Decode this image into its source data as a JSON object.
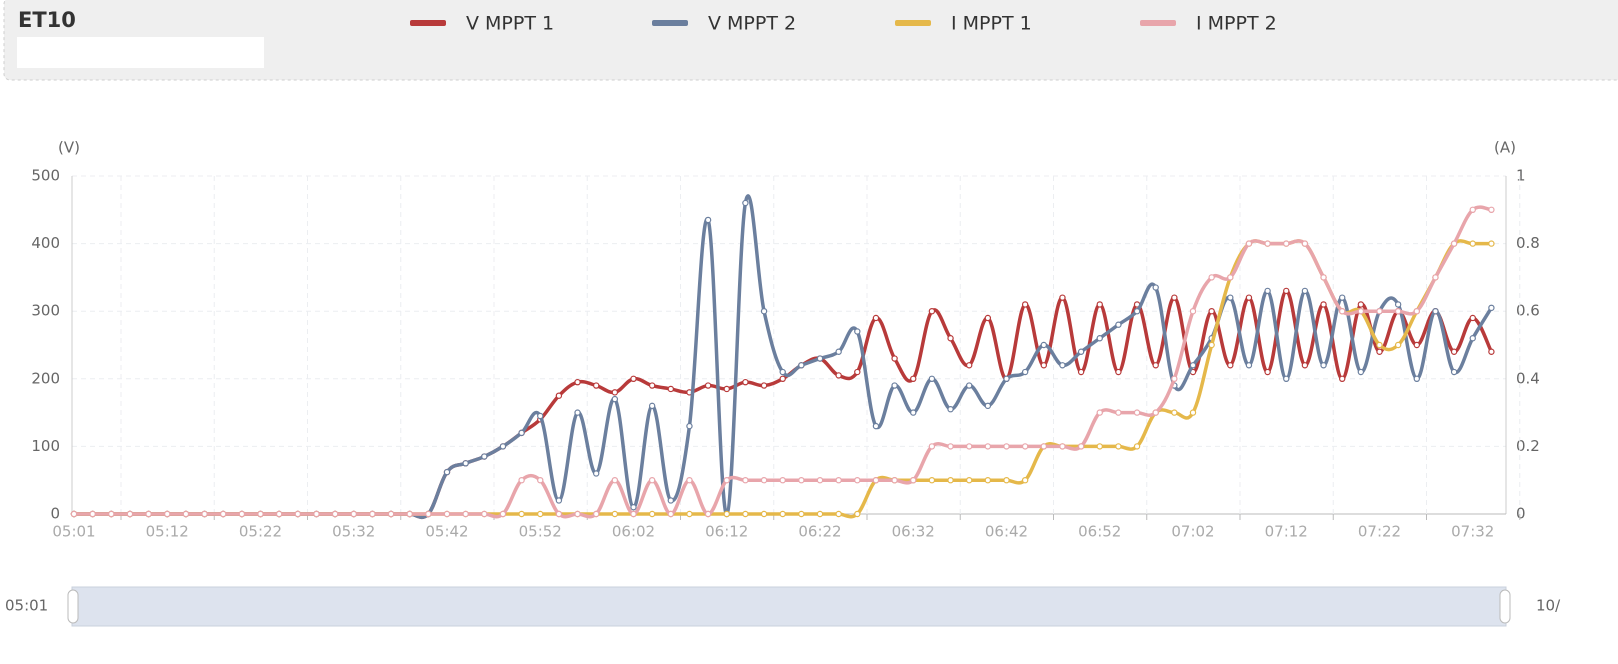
{
  "chart_data": {
    "type": "line",
    "title": "ET10",
    "y_label": "(V)",
    "y2_label": "(A)",
    "categories": [
      "05:01",
      null,
      null,
      null,
      null,
      "05:12",
      null,
      null,
      null,
      null,
      "05:22",
      null,
      null,
      null,
      null,
      "05:32",
      null,
      null,
      null,
      null,
      "05:42",
      null,
      null,
      null,
      null,
      "05:52",
      null,
      null,
      null,
      null,
      "06:02",
      null,
      null,
      null,
      null,
      "06:12",
      null,
      null,
      null,
      null,
      "06:22",
      null,
      null,
      null,
      null,
      "06:32",
      null,
      null,
      null,
      null,
      "06:42",
      null,
      null,
      null,
      null,
      "06:52",
      null,
      null,
      null,
      null,
      "07:02",
      null,
      null,
      null,
      null,
      "07:12",
      null,
      null,
      null,
      null,
      "07:22",
      null,
      null,
      null,
      null,
      "07:32",
      null
    ],
    "series": [
      {
        "name": "V MPPT 1",
        "color": "#b83a3a",
        "values": [
          0,
          0,
          0,
          0,
          0,
          0,
          0,
          0,
          0,
          0,
          0,
          0,
          0,
          0,
          0,
          0,
          0,
          0,
          0,
          0,
          62,
          75,
          85,
          100,
          120,
          140,
          175,
          195,
          190,
          180,
          200,
          190,
          185,
          180,
          190,
          185,
          195,
          190,
          200,
          220,
          230,
          205,
          210,
          290,
          230,
          200,
          300,
          260,
          220,
          290,
          200,
          310,
          220,
          320,
          210,
          310,
          210,
          310,
          220,
          320,
          210,
          300,
          220,
          320,
          210,
          330,
          220,
          310,
          200,
          310,
          240,
          300,
          250,
          300,
          240,
          290,
          240
        ]
      },
      {
        "name": "V MPPT 2",
        "color": "#6b7f9e",
        "values": [
          0,
          0,
          0,
          0,
          0,
          0,
          0,
          0,
          0,
          0,
          0,
          0,
          0,
          0,
          0,
          0,
          0,
          0,
          0,
          0,
          62,
          75,
          85,
          100,
          120,
          145,
          20,
          150,
          60,
          170,
          10,
          160,
          20,
          130,
          435,
          0,
          460,
          300,
          210,
          220,
          230,
          240,
          270,
          130,
          190,
          150,
          200,
          155,
          190,
          160,
          200,
          210,
          250,
          220,
          240,
          260,
          280,
          300,
          335,
          190,
          220,
          260,
          320,
          220,
          330,
          200,
          330,
          220,
          320,
          210,
          300,
          310,
          200,
          300,
          210,
          260,
          305
        ]
      },
      {
        "name": "I MPPT 1",
        "color": "#e5b84a",
        "axis": "y2",
        "values": [
          0,
          0,
          0,
          0,
          0,
          0,
          0,
          0,
          0,
          0,
          0,
          0,
          0,
          0,
          0,
          0,
          0,
          0,
          0,
          0,
          0,
          0,
          0,
          0,
          0,
          0,
          0,
          0,
          0,
          0,
          0,
          0,
          0,
          0,
          0,
          0,
          0,
          0,
          0,
          0,
          0,
          0,
          0,
          0.1,
          0.1,
          0.1,
          0.1,
          0.1,
          0.1,
          0.1,
          0.1,
          0.1,
          0.2,
          0.2,
          0.2,
          0.2,
          0.2,
          0.2,
          0.3,
          0.3,
          0.3,
          0.5,
          0.7,
          0.8,
          0.8,
          0.8,
          0.8,
          0.7,
          0.6,
          0.6,
          0.5,
          0.5,
          0.6,
          0.7,
          0.8,
          0.8,
          0.8
        ]
      },
      {
        "name": "I MPPT 2",
        "color": "#e8a5ab",
        "axis": "y2",
        "values": [
          0,
          0,
          0,
          0,
          0,
          0,
          0,
          0,
          0,
          0,
          0,
          0,
          0,
          0,
          0,
          0,
          0,
          0,
          0,
          0,
          0,
          0,
          0,
          0,
          0.1,
          0.1,
          0,
          0,
          0,
          0.1,
          0,
          0.1,
          0,
          0.1,
          0,
          0.1,
          0.1,
          0.1,
          0.1,
          0.1,
          0.1,
          0.1,
          0.1,
          0.1,
          0.1,
          0.1,
          0.2,
          0.2,
          0.2,
          0.2,
          0.2,
          0.2,
          0.2,
          0.2,
          0.2,
          0.3,
          0.3,
          0.3,
          0.3,
          0.4,
          0.6,
          0.7,
          0.7,
          0.8,
          0.8,
          0.8,
          0.8,
          0.7,
          0.6,
          0.6,
          0.6,
          0.6,
          0.6,
          0.7,
          0.8,
          0.9,
          0.9
        ]
      }
    ],
    "ylim": [
      0,
      500
    ],
    "yticks": [
      0,
      100,
      200,
      300,
      400,
      500
    ],
    "y2lim": [
      0,
      1
    ],
    "y2ticks": [
      0,
      0.2,
      0.4,
      0.6,
      0.8,
      1
    ],
    "grid": true,
    "slider": {
      "start": "05:01",
      "end": "10/"
    }
  }
}
